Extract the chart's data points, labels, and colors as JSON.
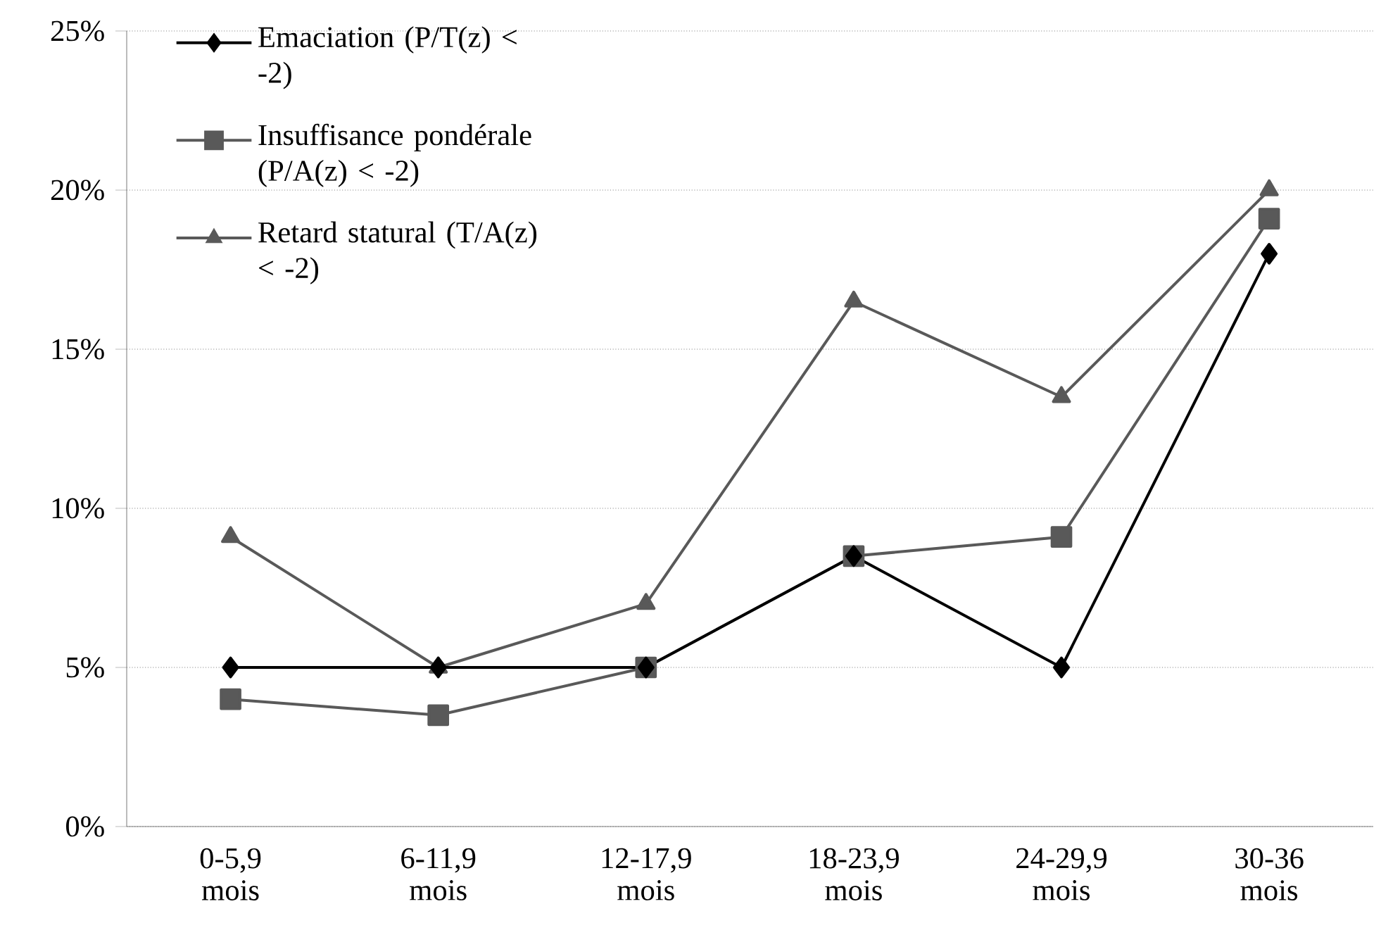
{
  "chart_data": {
    "type": "line",
    "categories": [
      "0-5,9 mois",
      "6-11,9 mois",
      "12-17,9 mois",
      "18-23,9 mois",
      "24-29,9 mois",
      "30-36 mois"
    ],
    "series": [
      {
        "name": "Emaciation (P/T(z) < -2)",
        "color": "#000000",
        "marker": "diamond",
        "values": [
          5,
          5,
          5,
          8.5,
          5,
          18
        ]
      },
      {
        "name": "Insuffisance pondérale (P/A(z) < -2)",
        "color": "#595959",
        "marker": "square",
        "values": [
          4.0,
          3.5,
          5,
          8.5,
          9.1,
          19.1
        ]
      },
      {
        "name": "Retard statural (T/A(z) < -2)",
        "color": "#595959",
        "marker": "triangle",
        "values": [
          9.1,
          5,
          7.0,
          16.5,
          13.5,
          20
        ]
      }
    ],
    "ylim": [
      0,
      25
    ],
    "yticks": [
      {
        "value": 0,
        "label": "0%"
      },
      {
        "value": 5,
        "label": "5%"
      },
      {
        "value": 10,
        "label": "10%"
      },
      {
        "value": 15,
        "label": "15%"
      },
      {
        "value": 20,
        "label": "20%"
      },
      {
        "value": 25,
        "label": "25%"
      }
    ],
    "grid": "y",
    "legend": "top left",
    "line_style": "solid"
  }
}
